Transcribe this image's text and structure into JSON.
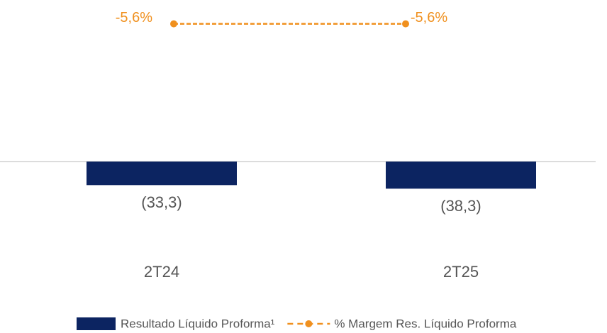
{
  "chart_data": {
    "type": "bar",
    "categories": [
      "2T24",
      "2T25"
    ],
    "series": [
      {
        "name": "Resultado Líquido Proforma¹",
        "type": "bar",
        "color": "#0c2461",
        "values": [
          -33.3,
          -38.3
        ],
        "value_labels": [
          "(33,3)",
          "(38,3)"
        ]
      },
      {
        "name": "% Margem Res. Líquido Proforma",
        "type": "line",
        "axis": "y2",
        "color": "#f0901e",
        "values": [
          -5.6,
          -5.6
        ],
        "value_labels": [
          "-5,6%",
          "-5,6%"
        ]
      }
    ],
    "ylim": [
      -100,
      200
    ],
    "y2lim": [
      -300,
      0
    ]
  }
}
